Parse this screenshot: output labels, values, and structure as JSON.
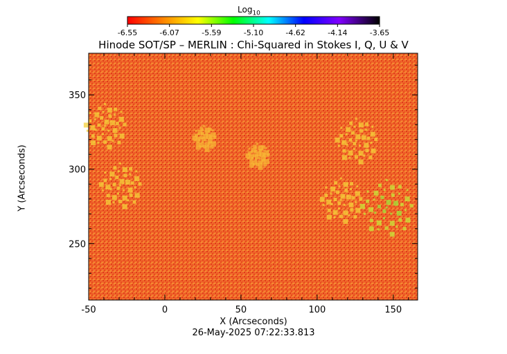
{
  "colorbar": {
    "label_main": "Log",
    "label_sub": "10",
    "ticks": [
      "-6.55",
      "-6.07",
      "-5.59",
      "-5.10",
      "-4.62",
      "-4.14",
      "-3.65"
    ]
  },
  "title": "Hinode SOT/SP – MERLIN : Chi-Squared in Stokes I, Q, U & V",
  "timestamp": "26-May-2025 07:22:33.813",
  "chart_data": {
    "type": "heatmap",
    "title": "Hinode SOT/SP – MERLIN : Chi-Squared in Stokes I, Q, U & V",
    "xlabel": "X (Arcseconds)",
    "ylabel": "Y (Arcseconds)",
    "xlim": [
      -50,
      166
    ],
    "ylim": [
      212,
      378
    ],
    "x_ticks": [
      -50,
      0,
      50,
      100,
      150
    ],
    "x_tick_labels": [
      "-50",
      "0",
      "50",
      "100",
      "150"
    ],
    "y_ticks": [
      250,
      300,
      350
    ],
    "y_tick_labels": [
      "250",
      "300",
      "350"
    ],
    "colorbar_range": [
      -6.55,
      -3.65
    ],
    "colormap": [
      "#ff0000",
      "#ff8c00",
      "#ffff00",
      "#00ff00",
      "#00ffff",
      "#0000ff",
      "#8000ff",
      "#000000"
    ],
    "dominant_level_color": "#f06428",
    "elevated_regions": [
      {
        "x": -40,
        "y": 330,
        "level": "high"
      },
      {
        "x": -30,
        "y": 290,
        "level": "high"
      },
      {
        "x": 145,
        "y": 275,
        "level": "very-high"
      },
      {
        "x": 115,
        "y": 280,
        "level": "high"
      },
      {
        "x": 125,
        "y": 320,
        "level": "high"
      },
      {
        "x": 60,
        "y": 310,
        "level": "medium"
      },
      {
        "x": 25,
        "y": 322,
        "level": "medium"
      }
    ],
    "grid": false
  }
}
